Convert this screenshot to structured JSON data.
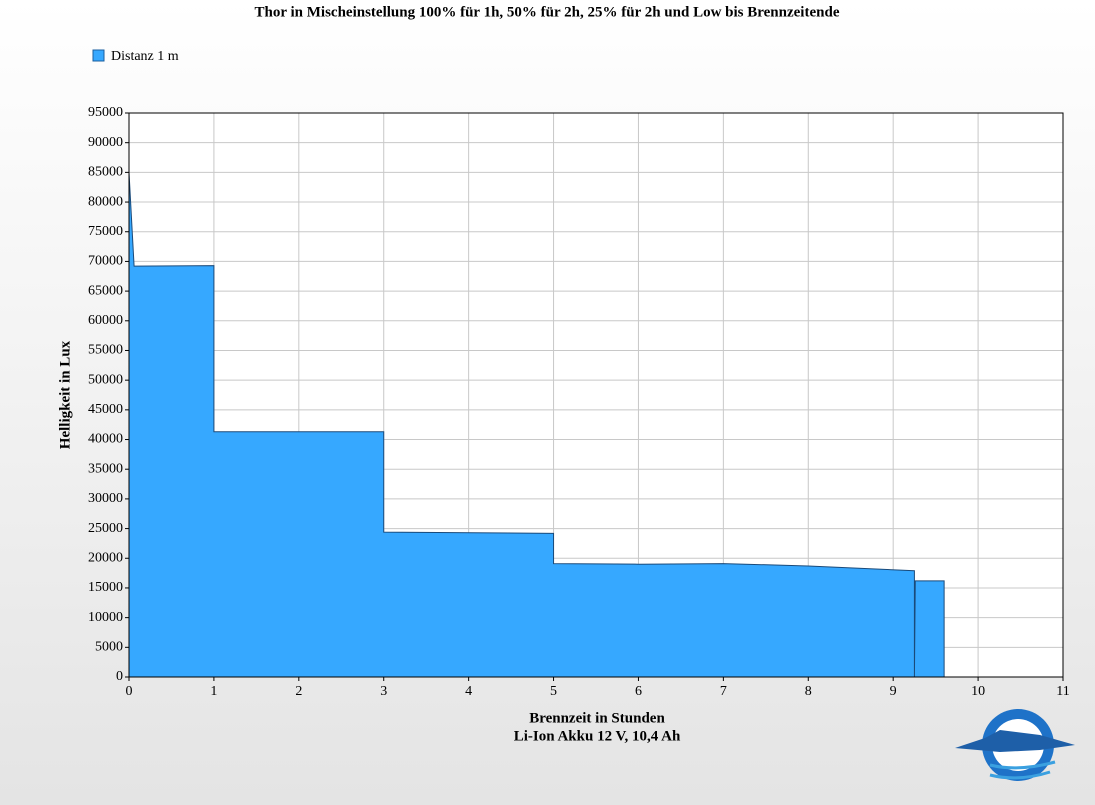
{
  "chart_data": {
    "type": "area",
    "title": "Thor in Mischeinstellung 100% für 1h, 50% für 2h, 25% für 2h und Low bis Brennzeitende",
    "ylabel": "Helligkeit in Lux",
    "xlabel_lines": [
      "Brennzeit in Stunden",
      "Li-Ion Akku 12 V, 10,4 Ah"
    ],
    "series": [
      {
        "name": "Distanz 1 m",
        "color": "#36a8ff",
        "x": [
          0,
          0.06,
          1,
          1,
          3,
          3,
          5,
          5,
          6,
          7,
          8,
          9.25,
          9.25,
          9.26,
          9.6,
          9.6
        ],
        "values": [
          85000,
          69200,
          69300,
          41300,
          41300,
          24400,
          24200,
          19100,
          19000,
          19100,
          18700,
          17900,
          0,
          16200,
          16200,
          0
        ]
      }
    ],
    "xlim": [
      0,
      11
    ],
    "xticks": [
      0,
      1,
      2,
      3,
      4,
      5,
      6,
      7,
      8,
      9,
      10,
      11
    ],
    "ylim": [
      0,
      95000
    ],
    "yticks": [
      0,
      5000,
      10000,
      15000,
      20000,
      25000,
      30000,
      35000,
      40000,
      45000,
      50000,
      55000,
      60000,
      65000,
      70000,
      75000,
      80000,
      85000,
      90000,
      95000
    ],
    "grid": true,
    "legend": "top-left"
  }
}
